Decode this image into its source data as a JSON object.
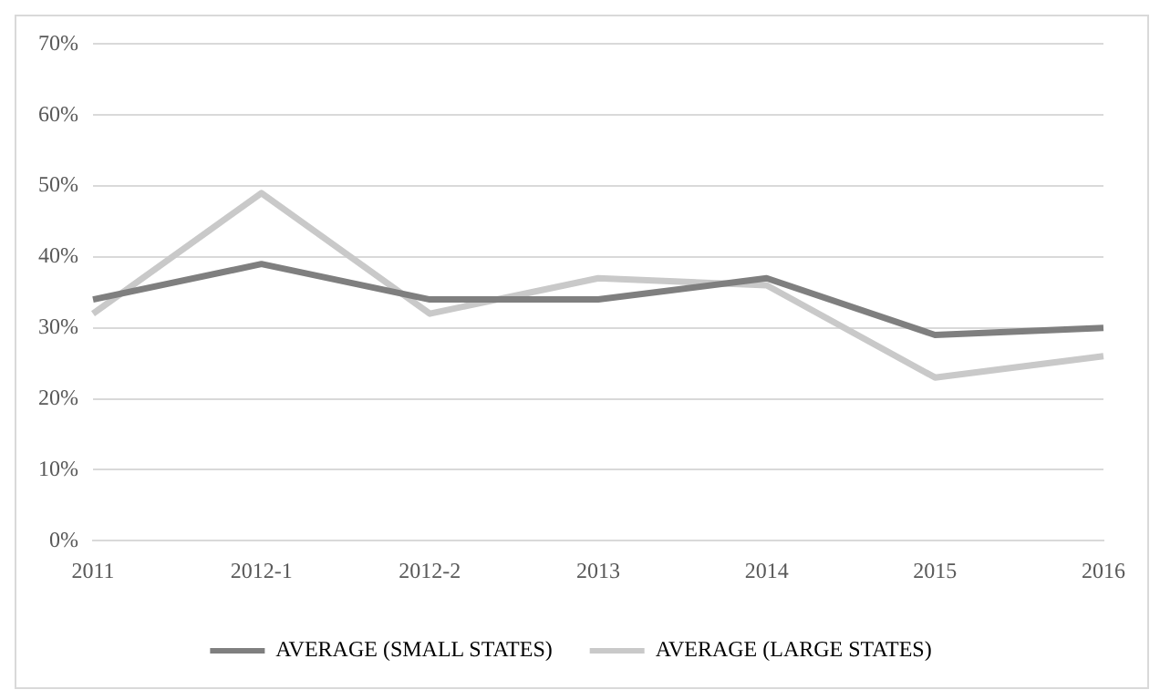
{
  "chart_data": {
    "type": "line",
    "categories": [
      "2011",
      "2012-1",
      "2012-2",
      "2013",
      "2014",
      "2015",
      "2016"
    ],
    "series": [
      {
        "name": "AVERAGE (SMALL STATES)",
        "color": "#7f7f7f",
        "values": [
          34,
          39,
          34,
          34,
          37,
          29,
          30
        ]
      },
      {
        "name": "AVERAGE (LARGE STATES)",
        "color": "#c9c9c9",
        "values": [
          32,
          49,
          32,
          37,
          36,
          23,
          26
        ]
      }
    ],
    "ylim": [
      0,
      70
    ],
    "yticks": [
      {
        "value": 0,
        "label": "0%"
      },
      {
        "value": 10,
        "label": "10%"
      },
      {
        "value": 20,
        "label": "20%"
      },
      {
        "value": 30,
        "label": "30%"
      },
      {
        "value": 40,
        "label": "40%"
      },
      {
        "value": 50,
        "label": "50%"
      },
      {
        "value": 60,
        "label": "60%"
      },
      {
        "value": 70,
        "label": "70%"
      }
    ],
    "grid": "y",
    "legend": "bottom",
    "marker": "none",
    "line_style": "solid"
  }
}
